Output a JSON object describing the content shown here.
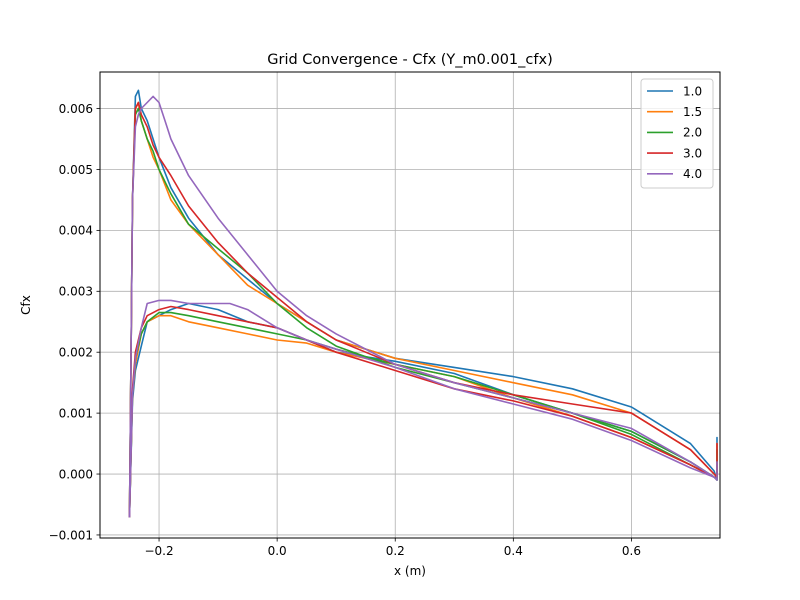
{
  "chart_data": {
    "type": "line",
    "title": "Grid Convergence - Cfx (Y_m0.001_cfx)",
    "xlabel": "x (m)",
    "ylabel": "Cfx",
    "xlim": [
      -0.3,
      0.75
    ],
    "ylim": [
      -0.00105,
      0.0066
    ],
    "xticks": [
      -0.2,
      0.0,
      0.2,
      0.4,
      0.6
    ],
    "xtick_labels": [
      "−0.2",
      "0.0",
      "0.2",
      "0.4",
      "0.6"
    ],
    "yticks": [
      -0.001,
      0.0,
      0.001,
      0.002,
      0.003,
      0.004,
      0.005,
      0.006
    ],
    "ytick_labels": [
      "−0.001",
      "0.000",
      "0.001",
      "0.002",
      "0.003",
      "0.004",
      "0.005",
      "0.006"
    ],
    "grid": true,
    "legend_position": "top-right",
    "series": [
      {
        "name": "1.0",
        "color": "#1f77b4",
        "upper": {
          "x": [
            -0.25,
            -0.245,
            -0.24,
            -0.235,
            -0.23,
            -0.22,
            -0.21,
            -0.2,
            -0.18,
            -0.15,
            -0.1,
            -0.05,
            0.0,
            0.05,
            0.1,
            0.2,
            0.3,
            0.4,
            0.5,
            0.6,
            0.7,
            0.74,
            0.745,
            0.745
          ],
          "y": [
            -0.0007,
            0.0045,
            0.0062,
            0.0063,
            0.006,
            0.0058,
            0.0055,
            0.0052,
            0.0047,
            0.0042,
            0.0036,
            0.0032,
            0.0028,
            0.0025,
            0.0022,
            0.0019,
            0.00175,
            0.0016,
            0.0014,
            0.0011,
            0.0005,
            5e-05,
            -0.0001,
            0.0006
          ]
        },
        "lower": {
          "x": [
            -0.25,
            -0.245,
            -0.24,
            -0.23,
            -0.22,
            -0.2,
            -0.18,
            -0.15,
            -0.1,
            -0.05,
            0.0,
            0.05,
            0.1,
            0.2,
            0.3,
            0.4,
            0.5,
            0.6,
            0.7,
            0.74
          ],
          "y": [
            -0.0007,
            0.0012,
            0.0017,
            0.0021,
            0.0025,
            0.0026,
            0.0027,
            0.0028,
            0.0027,
            0.0025,
            0.0024,
            0.0022,
            0.002,
            0.00185,
            0.00165,
            0.0013,
            0.001,
            0.0007,
            0.0002,
            -5e-05
          ]
        }
      },
      {
        "name": "1.5",
        "color": "#ff7f0e",
        "upper": {
          "x": [
            -0.25,
            -0.245,
            -0.24,
            -0.235,
            -0.23,
            -0.22,
            -0.21,
            -0.2,
            -0.18,
            -0.15,
            -0.1,
            -0.05,
            0.0,
            0.05,
            0.1,
            0.2,
            0.3,
            0.4,
            0.5,
            0.6,
            0.7,
            0.74,
            0.745,
            0.745
          ],
          "y": [
            -0.0007,
            0.0045,
            0.006,
            0.0061,
            0.0058,
            0.0055,
            0.0052,
            0.005,
            0.0045,
            0.0041,
            0.0036,
            0.0031,
            0.0028,
            0.0025,
            0.0022,
            0.0019,
            0.0017,
            0.0015,
            0.0013,
            0.001,
            0.0004,
            0.0,
            -5e-05,
            0.0005
          ]
        },
        "lower": {
          "x": [
            -0.25,
            -0.245,
            -0.24,
            -0.23,
            -0.22,
            -0.2,
            -0.18,
            -0.15,
            -0.1,
            -0.05,
            0.0,
            0.05,
            0.1,
            0.2,
            0.3,
            0.4,
            0.5,
            0.6,
            0.7,
            0.74
          ],
          "y": [
            -0.0007,
            0.0013,
            0.0018,
            0.0023,
            0.0025,
            0.0026,
            0.0026,
            0.0025,
            0.0024,
            0.0023,
            0.0022,
            0.00215,
            0.002,
            0.0018,
            0.0016,
            0.00125,
            0.00095,
            0.0006,
            0.00015,
            -5e-05
          ]
        }
      },
      {
        "name": "2.0",
        "color": "#2ca02c",
        "upper": {
          "x": [
            -0.25,
            -0.245,
            -0.24,
            -0.235,
            -0.23,
            -0.22,
            -0.21,
            -0.2,
            -0.18,
            -0.15,
            -0.1,
            -0.05,
            0.0,
            0.05,
            0.1,
            0.2,
            0.3,
            0.4,
            0.5,
            0.6,
            0.7,
            0.74,
            0.745,
            0.745
          ],
          "y": [
            -0.0007,
            0.0045,
            0.0059,
            0.006,
            0.0058,
            0.0055,
            0.0053,
            0.005,
            0.0046,
            0.0041,
            0.0037,
            0.0033,
            0.0028,
            0.0024,
            0.0021,
            0.00175,
            0.0015,
            0.00125,
            0.001,
            0.0007,
            0.0002,
            -5e-05,
            -0.0001,
            0.0004
          ]
        },
        "lower": {
          "x": [
            -0.25,
            -0.245,
            -0.24,
            -0.23,
            -0.22,
            -0.2,
            -0.18,
            -0.15,
            -0.1,
            -0.05,
            0.0,
            0.05,
            0.1,
            0.2,
            0.3,
            0.4,
            0.5,
            0.6,
            0.7,
            0.74
          ],
          "y": [
            -0.0007,
            0.0013,
            0.0019,
            0.0023,
            0.0025,
            0.00265,
            0.00265,
            0.0026,
            0.0025,
            0.0024,
            0.0023,
            0.0022,
            0.00205,
            0.0018,
            0.0016,
            0.0013,
            0.001,
            0.00065,
            0.00015,
            -5e-05
          ]
        }
      },
      {
        "name": "3.0",
        "color": "#d62728",
        "upper": {
          "x": [
            -0.25,
            -0.245,
            -0.24,
            -0.235,
            -0.23,
            -0.22,
            -0.21,
            -0.2,
            -0.18,
            -0.15,
            -0.1,
            -0.05,
            0.0,
            0.05,
            0.1,
            0.2,
            0.3,
            0.4,
            0.5,
            0.6,
            0.7,
            0.74,
            0.745,
            0.745
          ],
          "y": [
            -0.0007,
            0.0045,
            0.006,
            0.0061,
            0.0059,
            0.0057,
            0.0054,
            0.0052,
            0.0049,
            0.0044,
            0.0038,
            0.0033,
            0.0029,
            0.0025,
            0.0022,
            0.0018,
            0.0015,
            0.0013,
            0.00115,
            0.001,
            0.0004,
            0.0,
            -5e-05,
            0.0005
          ]
        },
        "lower": {
          "x": [
            -0.25,
            -0.245,
            -0.24,
            -0.23,
            -0.22,
            -0.2,
            -0.18,
            -0.15,
            -0.1,
            -0.05,
            0.0,
            0.05,
            0.1,
            0.2,
            0.3,
            0.4,
            0.5,
            0.6,
            0.7,
            0.74
          ],
          "y": [
            -0.0007,
            0.0014,
            0.002,
            0.0024,
            0.0026,
            0.0027,
            0.00275,
            0.0027,
            0.0026,
            0.0025,
            0.0024,
            0.0022,
            0.002,
            0.0017,
            0.0014,
            0.0012,
            0.00095,
            0.0006,
            0.00015,
            -5e-05
          ]
        }
      },
      {
        "name": "4.0",
        "color": "#9467bd",
        "upper": {
          "x": [
            -0.25,
            -0.245,
            -0.24,
            -0.235,
            -0.23,
            -0.22,
            -0.21,
            -0.2,
            -0.19,
            -0.18,
            -0.15,
            -0.1,
            -0.05,
            0.0,
            0.05,
            0.1,
            0.2,
            0.3,
            0.4,
            0.5,
            0.6,
            0.7,
            0.74,
            0.745,
            0.745
          ],
          "y": [
            -0.0007,
            0.0045,
            0.0057,
            0.0059,
            0.006,
            0.0061,
            0.0062,
            0.0061,
            0.0058,
            0.0055,
            0.0049,
            0.0042,
            0.0036,
            0.003,
            0.0026,
            0.0023,
            0.0018,
            0.0015,
            0.00125,
            0.001,
            0.00075,
            0.0002,
            -5e-05,
            -0.0001,
            0.0002
          ]
        },
        "lower": {
          "x": [
            -0.25,
            -0.245,
            -0.24,
            -0.23,
            -0.22,
            -0.2,
            -0.18,
            -0.15,
            -0.1,
            -0.08,
            -0.05,
            0.0,
            0.05,
            0.1,
            0.2,
            0.3,
            0.4,
            0.5,
            0.6,
            0.7,
            0.74
          ],
          "y": [
            -0.0007,
            0.0013,
            0.0019,
            0.0024,
            0.0028,
            0.00285,
            0.00285,
            0.0028,
            0.0028,
            0.0028,
            0.0027,
            0.0024,
            0.0022,
            0.00205,
            0.00175,
            0.0014,
            0.00115,
            0.0009,
            0.00055,
            0.0001,
            -5e-05
          ]
        }
      }
    ]
  }
}
